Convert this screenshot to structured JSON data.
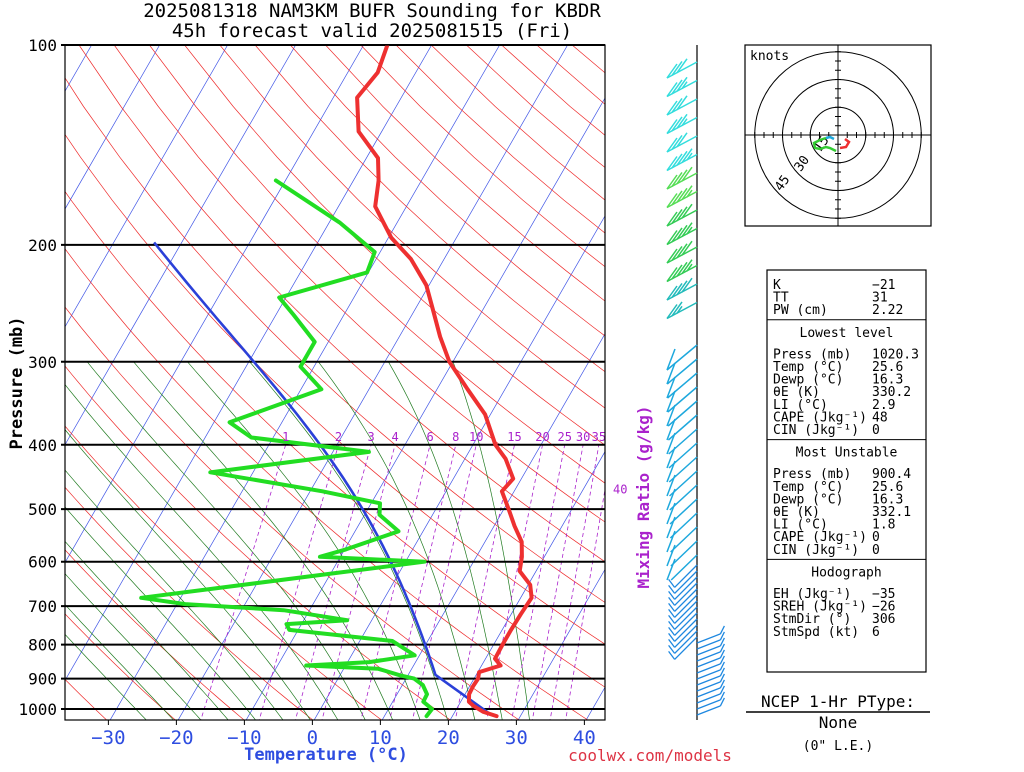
{
  "title_line1": "2025081318 NAM3KM BUFR Sounding for KBDR",
  "title_line2": "45h forecast valid 2025081515 (Fri)",
  "credit": "coolwx.com/models",
  "chart_data": {
    "type": "skew-t",
    "pressure_axis": {
      "label": "Pressure (mb)",
      "ticks": [
        100,
        200,
        300,
        400,
        500,
        600,
        700,
        800,
        900,
        1000
      ],
      "range": [
        1050,
        100
      ],
      "scale": "log"
    },
    "temperature_axis": {
      "label": "Temperature (°C)",
      "ticks": [
        -30,
        -20,
        -10,
        0,
        10,
        20,
        30,
        40
      ],
      "range": [
        -38,
        42
      ]
    },
    "mixing_ratio": {
      "label": "Mixing Ratio (g/kg)",
      "values": [
        1,
        2,
        3,
        4,
        6,
        8,
        10,
        15,
        20,
        25,
        30,
        35,
        40
      ]
    },
    "series": [
      {
        "name": "Temperature",
        "color": "#ee3030",
        "points": [
          [
            1025,
            26.5
          ],
          [
            1010,
            24.2
          ],
          [
            990,
            22.3
          ],
          [
            975,
            21.2
          ],
          [
            950,
            20.6
          ],
          [
            925,
            20.5
          ],
          [
            900,
            20.6
          ],
          [
            880,
            20.2
          ],
          [
            860,
            22.8
          ],
          [
            840,
            21.4
          ],
          [
            800,
            21.3
          ],
          [
            760,
            21.3
          ],
          [
            720,
            21.4
          ],
          [
            680,
            21.6
          ],
          [
            650,
            20.3
          ],
          [
            620,
            17.6
          ],
          [
            590,
            16.7
          ],
          [
            560,
            15.4
          ],
          [
            530,
            13.0
          ],
          [
            500,
            10.7
          ],
          [
            470,
            8.2
          ],
          [
            450,
            8.8
          ],
          [
            420,
            6.0
          ],
          [
            400,
            3.3
          ],
          [
            360,
            -0.8
          ],
          [
            330,
            -5.5
          ],
          [
            300,
            -10.5
          ],
          [
            275,
            -14.0
          ],
          [
            250,
            -17.4
          ],
          [
            230,
            -20.4
          ],
          [
            210,
            -24.9
          ],
          [
            195,
            -29.6
          ],
          [
            175,
            -34.6
          ],
          [
            160,
            -36.3
          ],
          [
            148,
            -38.3
          ],
          [
            135,
            -43.4
          ],
          [
            120,
            -46.5
          ],
          [
            110,
            -45.6
          ],
          [
            100,
            -46.5
          ]
        ]
      },
      {
        "name": "Dewpoint",
        "color": "#22dd22",
        "points": [
          [
            1025,
            16.2
          ],
          [
            1000,
            16.4
          ],
          [
            975,
            14.5
          ],
          [
            950,
            14.4
          ],
          [
            920,
            13.0
          ],
          [
            900,
            11.2
          ],
          [
            890,
            8.9
          ],
          [
            870,
            5.1
          ],
          [
            860,
            -5.8
          ],
          [
            850,
            3.2
          ],
          [
            830,
            9.3
          ],
          [
            790,
            4.8
          ],
          [
            760,
            -11.3
          ],
          [
            745,
            -12.2
          ],
          [
            735,
            -3.6
          ],
          [
            710,
            -13.8
          ],
          [
            695,
            -28.8
          ],
          [
            680,
            -35.8
          ],
          [
            600,
            2.8
          ],
          [
            590,
            -13.0
          ],
          [
            575,
            -9.8
          ],
          [
            540,
            -3.6
          ],
          [
            510,
            -7.8
          ],
          [
            490,
            -8.7
          ],
          [
            470,
            -18.2
          ],
          [
            440,
            -36.3
          ],
          [
            410,
            -14.7
          ],
          [
            390,
            -33.2
          ],
          [
            370,
            -37.7
          ],
          [
            330,
            -27.0
          ],
          [
            305,
            -32.0
          ],
          [
            280,
            -32.0
          ],
          [
            255,
            -37.4
          ],
          [
            240,
            -41.0
          ],
          [
            220,
            -30.2
          ],
          [
            205,
            -30.8
          ],
          [
            185,
            -38.5
          ],
          [
            160,
            -51.4
          ]
        ]
      }
    ],
    "hodograph": {
      "title": "knots",
      "rings": [
        15,
        30,
        45
      ]
    },
    "indices": {
      "general": [
        {
          "label": "K",
          "value": "-21"
        },
        {
          "label": "TT",
          "value": "31"
        },
        {
          "label": "PW (cm)",
          "value": "2.22"
        }
      ],
      "lowest_level": {
        "title": "Lowest level",
        "rows": [
          {
            "label": "Press (mb)",
            "value": "1020.3"
          },
          {
            "label": "Temp (°C)",
            "value": "25.6"
          },
          {
            "label": "Dewp (°C)",
            "value": "16.3"
          },
          {
            "label": "θE (K)",
            "value": "330.2"
          },
          {
            "label": "LI (°C)",
            "value": "2.9"
          },
          {
            "label": "CAPE (Jkg⁻¹)",
            "value": "48"
          },
          {
            "label": "CIN (Jkg⁻¹)",
            "value": "0"
          }
        ]
      },
      "most_unstable": {
        "title": "Most Unstable",
        "rows": [
          {
            "label": "Press (mb)",
            "value": "900.4"
          },
          {
            "label": "Temp (°C)",
            "value": "25.6"
          },
          {
            "label": "Dewp (°C)",
            "value": "16.3"
          },
          {
            "label": "θE (K)",
            "value": "332.1"
          },
          {
            "label": "LI (°C)",
            "value": "1.8"
          },
          {
            "label": "CAPE (Jkg⁻¹)",
            "value": "0"
          },
          {
            "label": "CIN (Jkg⁻¹)",
            "value": "0"
          }
        ]
      },
      "hodograph_section": {
        "title": "Hodograph",
        "rows": [
          {
            "label": "EH (Jkg⁻¹)",
            "value": "-35"
          },
          {
            "label": "SREH (Jkg⁻¹)",
            "value": "-26"
          },
          {
            "label": "StmDir (°)",
            "value": "306"
          },
          {
            "label": "StmSpd (kt)",
            "value": "6"
          }
        ]
      }
    },
    "ptype": {
      "title": "NCEP 1-Hr PType:",
      "value": "None",
      "note": "(0\" L.E.)"
    }
  }
}
